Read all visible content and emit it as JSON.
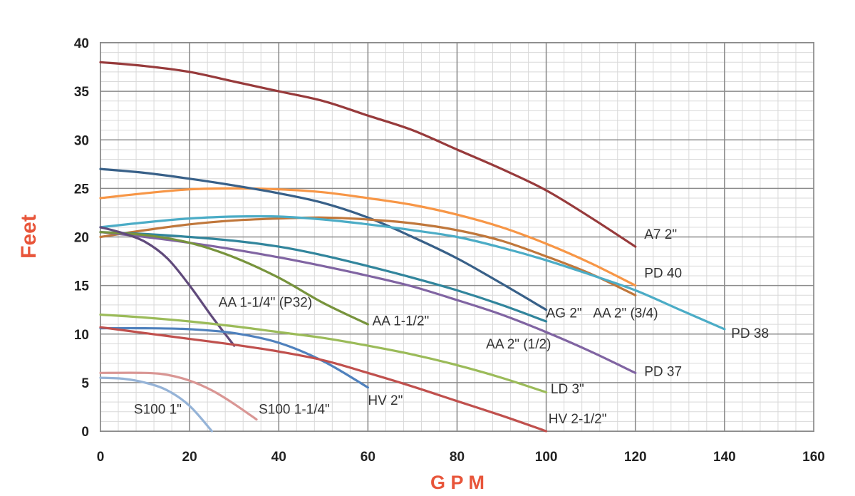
{
  "chart_data": {
    "type": "line",
    "title": "",
    "xlabel": "G P M",
    "ylabel": "Feet",
    "xlim": [
      0,
      160
    ],
    "ylim": [
      0,
      40
    ],
    "x_ticks": [
      "0",
      "20",
      "40",
      "60",
      "80",
      "100",
      "120",
      "140",
      "160"
    ],
    "y_ticks": [
      "0",
      "5",
      "10",
      "15",
      "20",
      "25",
      "30",
      "35",
      "40"
    ],
    "grid": true,
    "axis_title_color": "#e8553a",
    "series": [
      {
        "name": "A7 2\"",
        "color": "#973a3b",
        "x": [
          0,
          10,
          20,
          30,
          40,
          50,
          60,
          70,
          80,
          90,
          100,
          110,
          120
        ],
        "y": [
          38,
          37.6,
          37,
          36,
          35,
          34,
          32.5,
          31,
          29,
          27,
          24.8,
          22,
          19
        ]
      },
      {
        "name": "PD 40",
        "color": "#f79646",
        "x": [
          0,
          10,
          20,
          30,
          40,
          50,
          60,
          70,
          80,
          90,
          100,
          110,
          120
        ],
        "y": [
          24,
          24.5,
          24.9,
          25,
          24.9,
          24.6,
          24,
          23.3,
          22.3,
          21,
          19.3,
          17.3,
          15
        ]
      },
      {
        "name": "AG 2\"",
        "color": "#386088",
        "x": [
          0,
          10,
          20,
          30,
          40,
          50,
          60,
          70,
          80,
          90,
          100
        ],
        "y": [
          27,
          26.6,
          26,
          25.3,
          24.5,
          23.5,
          22,
          20,
          17.8,
          15.2,
          12.5
        ]
      },
      {
        "name": "AA 2\" (3/4)",
        "color": "#c0773b",
        "x": [
          0,
          10,
          20,
          30,
          40,
          50,
          60,
          70,
          80,
          90,
          100,
          110,
          120
        ],
        "y": [
          20,
          20.7,
          21.3,
          21.7,
          21.9,
          22,
          21.8,
          21.4,
          20.7,
          19.6,
          18,
          16.2,
          14
        ]
      },
      {
        "name": "PD 38",
        "color": "#4bacc6",
        "x": [
          0,
          10,
          20,
          30,
          40,
          50,
          60,
          70,
          80,
          90,
          100,
          110,
          120,
          130,
          140
        ],
        "y": [
          21,
          21.5,
          21.9,
          22.1,
          22.1,
          21.8,
          21.3,
          20.7,
          20,
          18.9,
          17.6,
          16.1,
          14.5,
          12.5,
          10.5
        ]
      },
      {
        "name": "AA 2\" (1/2)",
        "color": "#31859c",
        "x": [
          0,
          10,
          20,
          30,
          40,
          50,
          60,
          70,
          80,
          90,
          100
        ],
        "y": [
          20.5,
          20.3,
          20,
          19.6,
          19,
          18.1,
          17,
          15.8,
          14.5,
          13,
          11.3
        ]
      },
      {
        "name": "PD 37",
        "color": "#8064a2",
        "x": [
          0,
          10,
          20,
          30,
          40,
          50,
          60,
          70,
          80,
          90,
          100,
          110,
          120
        ],
        "y": [
          20.5,
          20,
          19.4,
          18.7,
          17.9,
          17,
          16,
          14.9,
          13.5,
          12,
          10.2,
          8.2,
          6
        ]
      },
      {
        "name": "AA 1-1/2\"",
        "color": "#77933c",
        "x": [
          0,
          10,
          20,
          30,
          40,
          50,
          60
        ],
        "y": [
          20.5,
          20.2,
          19.4,
          17.9,
          15.8,
          13.2,
          11
        ]
      },
      {
        "name": "AA 1-1/4\" (P32)",
        "color": "#604a7b",
        "x": [
          0,
          5,
          10,
          15,
          20,
          25,
          30
        ],
        "y": [
          21,
          20.4,
          19.5,
          17.8,
          15,
          11.8,
          8.8
        ]
      },
      {
        "name": "LD 3\"",
        "color": "#9bbb59",
        "x": [
          0,
          10,
          20,
          30,
          40,
          50,
          60,
          70,
          80,
          90,
          100
        ],
        "y": [
          12,
          11.7,
          11.3,
          10.8,
          10.2,
          9.6,
          8.8,
          7.9,
          6.8,
          5.5,
          4
        ]
      },
      {
        "name": "HV 2\"",
        "color": "#4f81bd",
        "x": [
          0,
          10,
          20,
          30,
          40,
          50,
          60
        ],
        "y": [
          10.6,
          10.6,
          10.5,
          10.1,
          9.1,
          7.2,
          4.5
        ]
      },
      {
        "name": "HV 2-1/2\"",
        "color": "#c0504d",
        "x": [
          0,
          10,
          20,
          30,
          40,
          50,
          60,
          70,
          80,
          90,
          100
        ],
        "y": [
          10.7,
          10.1,
          9.5,
          8.9,
          8.2,
          7.3,
          6,
          4.6,
          3.1,
          1.6,
          0
        ]
      },
      {
        "name": "S100 1-1/4\"",
        "color": "#d99694",
        "x": [
          0,
          10,
          15,
          20,
          25,
          30,
          35
        ],
        "y": [
          6,
          6,
          5.8,
          5.2,
          4.2,
          2.8,
          1.2
        ]
      },
      {
        "name": "S100 1\"",
        "color": "#95b3d7",
        "x": [
          0,
          5,
          10,
          15,
          20,
          25
        ],
        "y": [
          5.5,
          5.4,
          5,
          4.2,
          2.6,
          0
        ]
      }
    ],
    "labels": [
      {
        "text": "A7 2\"",
        "x": 122,
        "y": 19.8
      },
      {
        "text": "PD 40",
        "x": 122,
        "y": 15.8
      },
      {
        "text": "AG 2\"",
        "x": 100,
        "y": 11.7
      },
      {
        "text": "AA 2\" (3/4)",
        "x": 110.5,
        "y": 11.7
      },
      {
        "text": "PD 38",
        "x": 141.5,
        "y": 9.6
      },
      {
        "text": "AA 2\" (1/2)",
        "x": 86.5,
        "y": 8.5
      },
      {
        "text": "PD 37",
        "x": 122,
        "y": 5.7
      },
      {
        "text": "AA 1-1/2\"",
        "x": 61,
        "y": 10.9
      },
      {
        "text": "AA 1-1/4\" (P32)",
        "x": 26.5,
        "y": 12.8
      },
      {
        "text": "LD 3\"",
        "x": 101,
        "y": 3.9
      },
      {
        "text": "HV 2\"",
        "x": 60,
        "y": 2.7
      },
      {
        "text": "HV 2-1/2\"",
        "x": 100.5,
        "y": 0.8
      },
      {
        "text": "S100 1-1/4\"",
        "x": 35.5,
        "y": 1.8
      },
      {
        "text": "S100 1\"",
        "x": 7.5,
        "y": 1.8
      }
    ]
  }
}
